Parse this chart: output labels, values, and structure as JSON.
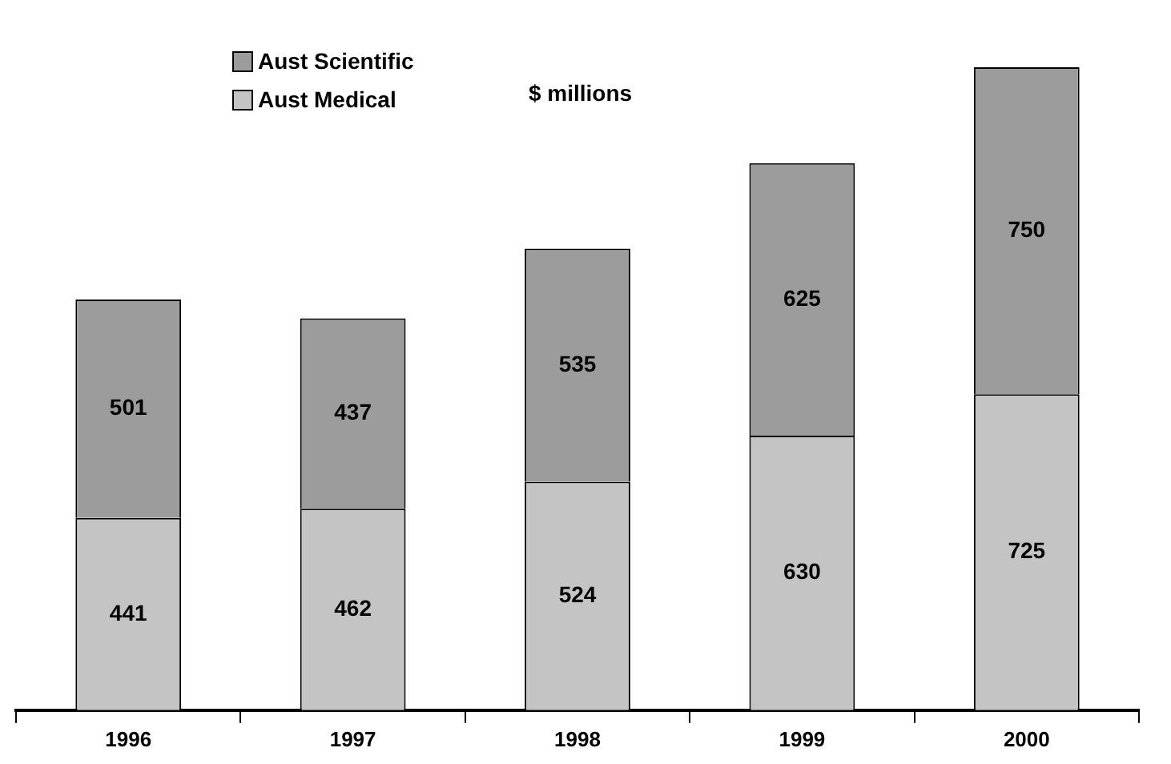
{
  "chart_data": {
    "type": "bar",
    "title": "$ millions",
    "stacked": true,
    "data_labels": true,
    "legend": "top left",
    "grid": false,
    "categories": [
      "1996",
      "1997",
      "1998",
      "1999",
      "2000"
    ],
    "series": [
      {
        "name": "Aust Medical",
        "color": "#c4c4c4",
        "values": [
          441,
          462,
          524,
          630,
          725
        ]
      },
      {
        "name": "Aust Scientific",
        "color": "#9c9c9c",
        "values": [
          501,
          437,
          535,
          625,
          750
        ]
      }
    ]
  }
}
